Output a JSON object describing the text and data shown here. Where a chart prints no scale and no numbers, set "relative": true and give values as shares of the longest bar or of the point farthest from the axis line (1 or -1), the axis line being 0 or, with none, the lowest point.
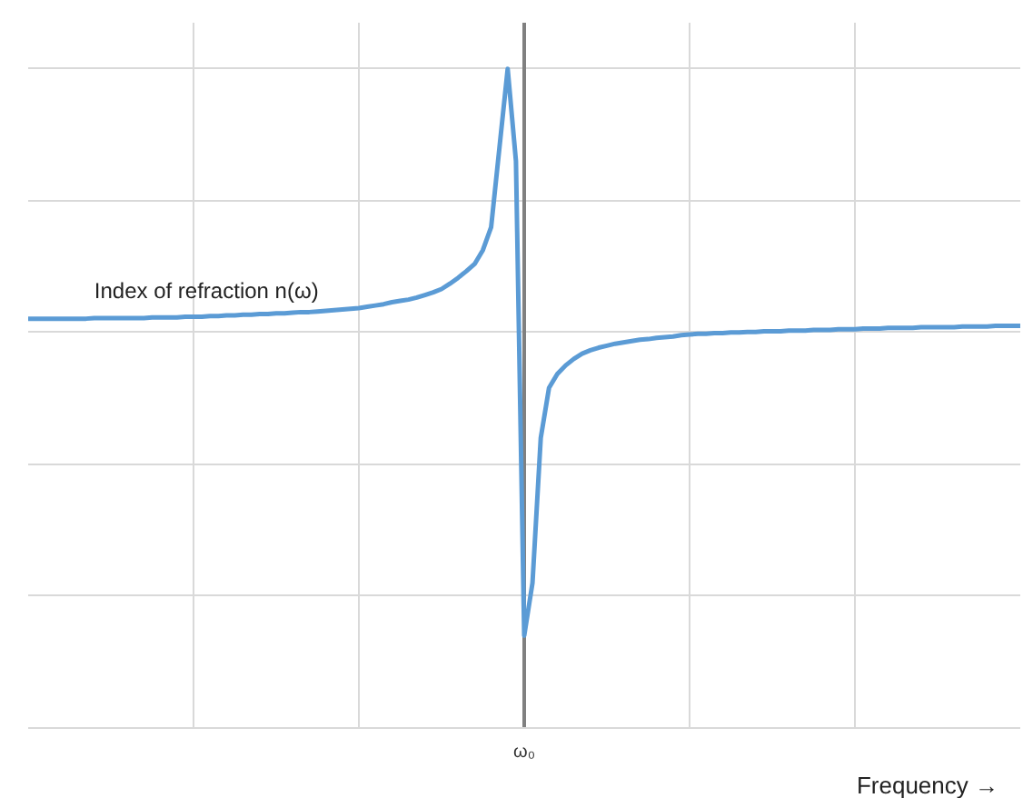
{
  "chart_data": {
    "type": "line",
    "relative": true,
    "xlabel": "Frequency →",
    "categories": [
      null,
      null,
      null,
      null,
      null,
      null,
      null,
      null,
      null,
      null,
      null,
      null,
      null,
      null,
      null,
      null,
      null,
      null,
      null,
      null,
      null,
      null,
      null,
      null,
      null,
      null,
      null,
      null,
      null,
      null,
      null,
      null,
      null,
      null,
      null,
      null,
      null,
      null,
      null,
      null,
      null,
      null,
      null,
      null,
      null,
      null,
      null,
      null,
      null,
      null,
      null,
      null,
      null,
      null,
      null,
      null,
      null,
      null,
      null,
      null,
      null,
      null,
      null,
      null,
      null,
      null,
      null,
      null,
      null,
      null,
      null,
      null,
      null,
      null,
      null,
      null,
      null,
      null,
      null,
      null,
      null,
      null,
      null,
      null,
      null,
      null,
      null,
      null,
      null,
      null,
      null,
      null,
      null,
      null,
      null,
      null,
      null,
      null,
      null,
      null,
      null,
      null,
      null,
      null,
      null,
      null,
      null,
      null,
      null,
      null,
      null,
      null,
      null,
      null,
      null,
      null,
      null,
      null,
      null,
      null,
      null
    ],
    "grid": true,
    "marker": "none",
    "line_style": "solid",
    "annotations": [
      "ω₀"
    ],
    "series": [
      {
        "name": "Index of refraction n(ω)",
        "color": "#5b9bd5",
        "values": [
          0.621,
          0.621,
          0.621,
          0.621,
          0.621,
          0.621,
          0.621,
          0.621,
          0.622,
          0.622,
          0.622,
          0.622,
          0.622,
          0.622,
          0.622,
          0.623,
          0.623,
          0.623,
          0.623,
          0.624,
          0.624,
          0.624,
          0.625,
          0.625,
          0.626,
          0.626,
          0.627,
          0.627,
          0.628,
          0.628,
          0.629,
          0.629,
          0.63,
          0.631,
          0.631,
          0.632,
          0.633,
          0.634,
          0.635,
          0.636,
          0.637,
          0.639,
          0.641,
          0.643,
          0.646,
          0.648,
          0.65,
          0.653,
          0.657,
          0.661,
          0.666,
          0.674,
          0.683,
          0.693,
          0.704,
          0.725,
          0.76,
          0.88,
          1.0,
          0.86,
          0.14,
          0.22,
          0.44,
          0.516,
          0.537,
          0.55,
          0.56,
          0.568,
          0.573,
          0.577,
          0.58,
          0.583,
          0.585,
          0.587,
          0.589,
          0.59,
          0.592,
          0.593,
          0.594,
          0.596,
          0.597,
          0.598,
          0.598,
          0.599,
          0.599,
          0.6,
          0.6,
          0.601,
          0.601,
          0.602,
          0.602,
          0.602,
          0.603,
          0.603,
          0.603,
          0.604,
          0.604,
          0.604,
          0.605,
          0.605,
          0.605,
          0.606,
          0.606,
          0.606,
          0.607,
          0.607,
          0.607,
          0.607,
          0.608,
          0.608,
          0.608,
          0.608,
          0.608,
          0.609,
          0.609,
          0.609,
          0.609,
          0.61,
          0.61,
          0.61,
          0.61
        ]
      }
    ]
  }
}
